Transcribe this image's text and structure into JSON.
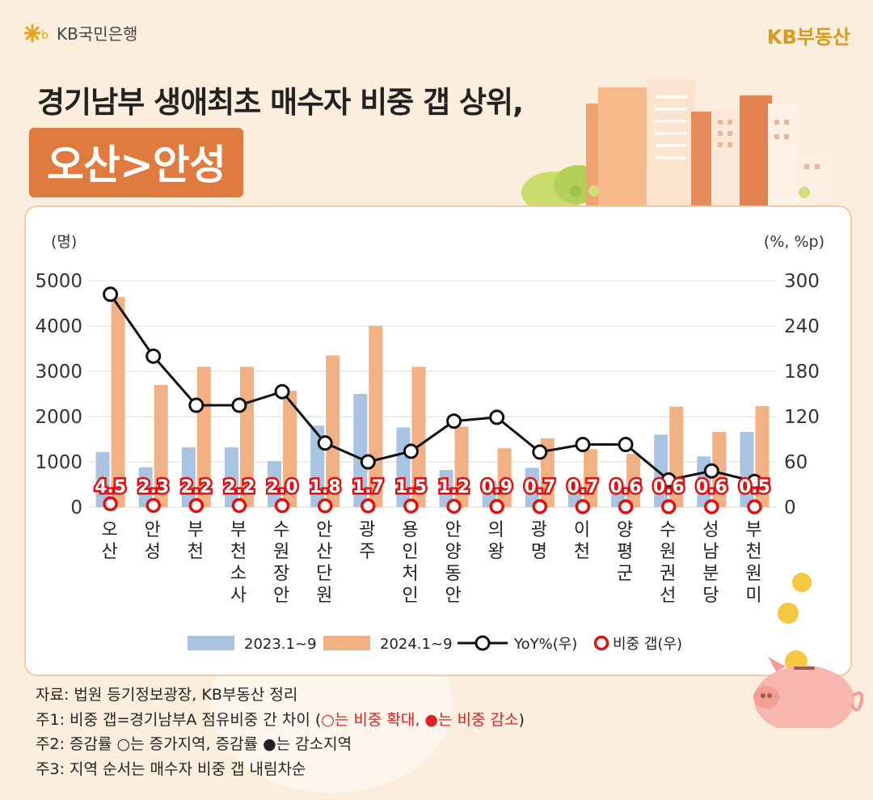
{
  "header": {
    "bank_name": "KB국민은행",
    "brand": "KB부동산",
    "title_line1": "경기남부 생애최초 매수자 비중 갭 상위,",
    "title_line2": "오산>안성"
  },
  "colors": {
    "bar_2023": "#a8c4e2",
    "bar_2024": "#f2b184",
    "line": "#111111",
    "gap_marker": "#e01010",
    "accent": "#e07a3e"
  },
  "chart_data": {
    "type": "bar",
    "y_left_label": "(명)",
    "y_right_label": "(%, %p)",
    "y_left_range": [
      0,
      5000
    ],
    "y_left_ticks": [
      "0",
      "1000",
      "2000",
      "3000",
      "4000",
      "5000"
    ],
    "y_right_range": [
      0,
      300
    ],
    "y_right_ticks": [
      "0",
      "60",
      "120",
      "180",
      "240",
      "300"
    ],
    "grid": true,
    "legend_position": "bottom",
    "categories": [
      "오산",
      "안성",
      "부천",
      "부천소사",
      "수원장안",
      "안산단원",
      "광주",
      "용인처인",
      "안양동안",
      "의왕",
      "광명",
      "이천",
      "양평군",
      "수원권선",
      "성남분당",
      "부천원미"
    ],
    "series": [
      {
        "name": "2023.1~9",
        "type": "bar",
        "axis": "left",
        "values": [
          1220,
          880,
          1320,
          1320,
          1020,
          1800,
          2500,
          1760,
          820,
          580,
          870,
          520,
          500,
          1600,
          1120,
          1660
        ]
      },
      {
        "name": "2024.1~9",
        "type": "bar",
        "axis": "left",
        "values": [
          4640,
          2700,
          3100,
          3100,
          2570,
          3350,
          4000,
          3100,
          1780,
          1300,
          1520,
          1280,
          1180,
          2220,
          1660,
          2230
        ]
      },
      {
        "name": "YoY%(우)",
        "type": "line",
        "axis": "right",
        "values": [
          282,
          200,
          135,
          135,
          153,
          85,
          60,
          74,
          114,
          119,
          73,
          83,
          83,
          36,
          48,
          34
        ]
      },
      {
        "name": "비중 갭(우)",
        "type": "marker",
        "axis": "right",
        "values": [
          4.5,
          2.3,
          2.2,
          2.2,
          2.0,
          1.8,
          1.7,
          1.5,
          1.2,
          0.9,
          0.7,
          0.7,
          0.6,
          0.6,
          0.6,
          0.5
        ],
        "labels": [
          "4.5",
          "2.3",
          "2.2",
          "2.2",
          "2.0",
          "1.8",
          "1.7",
          "1.5",
          "1.2",
          "0.9",
          "0.7",
          "0.7",
          "0.6",
          "0.6",
          "0.6",
          "0.5"
        ]
      }
    ]
  },
  "notes": {
    "source": "자료: 법원 등기정보광장, KB부동산 정리",
    "note1_prefix": "주1: 비중 갭=경기남부A 점유비중 간 차이 (",
    "note1_red": "○는 비중 확대, ●는 비중 감소",
    "note1_suffix": ")",
    "note2": "주2: 증감률 ○는 증가지역, 증감률 ●는 감소지역",
    "note3": "주3: 지역 순서는 매수자 비중 갭 내림차순"
  }
}
